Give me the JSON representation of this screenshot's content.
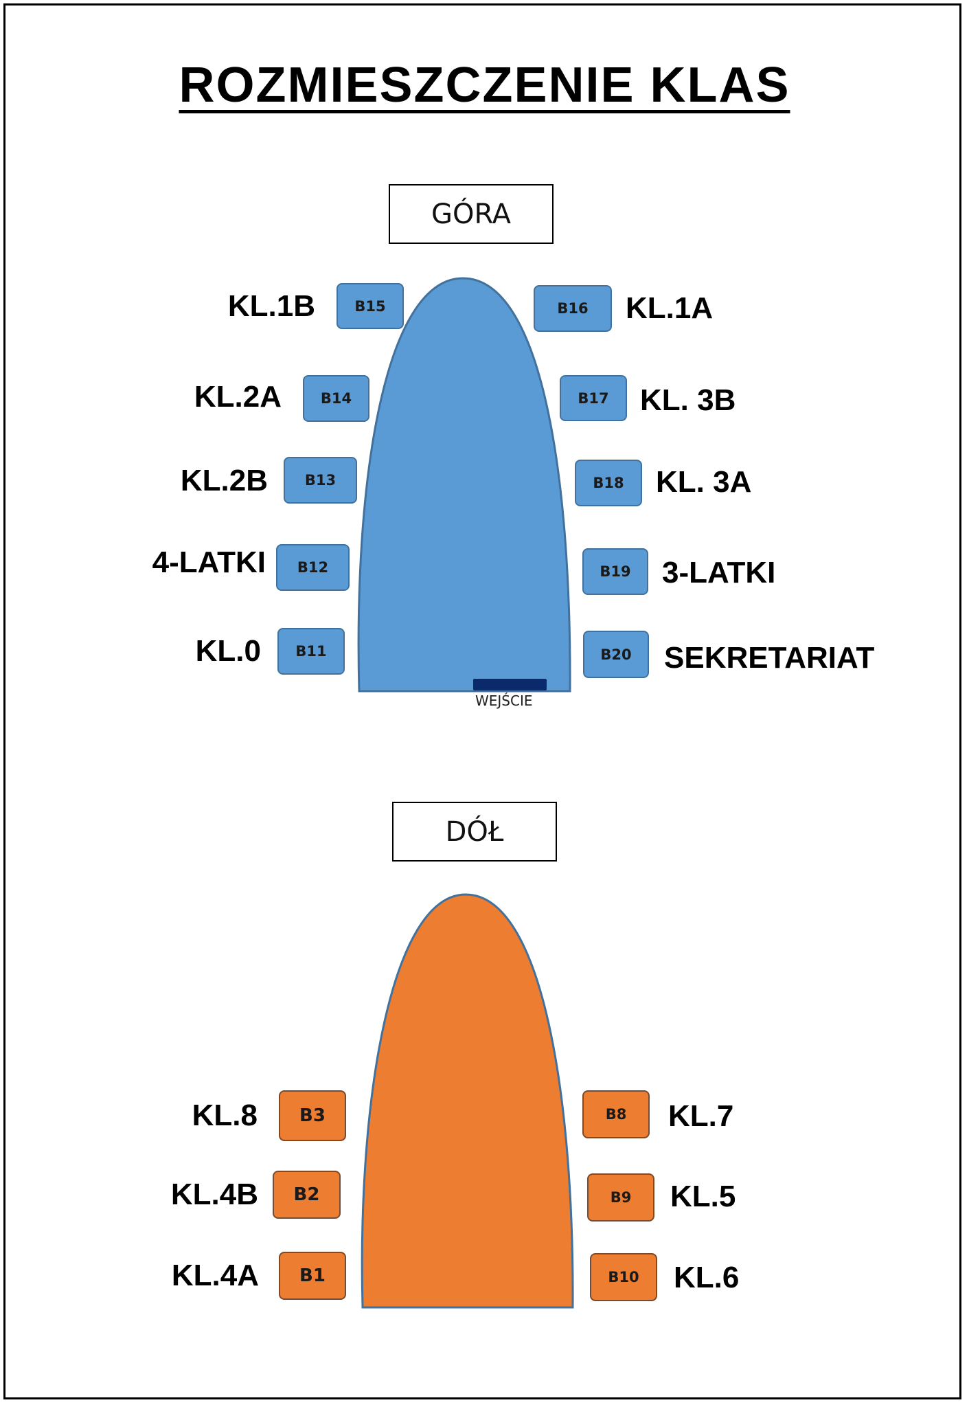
{
  "title": "ROZMIESZCZENIE KLAS",
  "colors": {
    "upper_fill": "#5b9bd5",
    "upper_stroke": "#41719c",
    "lower_fill": "#ed7d31",
    "lower_stroke": "#41719c",
    "entrance_fill": "#0b2a6b"
  },
  "upper": {
    "heading": "GÓRA",
    "entrance_label": "WEJŚCIE",
    "rooms": [
      {
        "room": "B15",
        "label": "KL.1B"
      },
      {
        "room": "B14",
        "label": "KL.2A"
      },
      {
        "room": "B13",
        "label": "KL.2B"
      },
      {
        "room": "B12",
        "label": "4-LATKI"
      },
      {
        "room": "B11",
        "label": "KL.0"
      },
      {
        "room": "B16",
        "label": "KL.1A"
      },
      {
        "room": "B17",
        "label": "KL. 3B"
      },
      {
        "room": "B18",
        "label": "KL. 3A"
      },
      {
        "room": "B19",
        "label": "3-LATKI"
      },
      {
        "room": "B20",
        "label": "SEKRETARIAT"
      }
    ]
  },
  "lower": {
    "heading": "DÓŁ",
    "rooms": [
      {
        "room": "B3",
        "label": "KL.8"
      },
      {
        "room": "B2",
        "label": "KL.4B"
      },
      {
        "room": "B1",
        "label": "KL.4A"
      },
      {
        "room": "B8",
        "label": "KL.7"
      },
      {
        "room": "B9",
        "label": "KL.5"
      },
      {
        "room": "B10",
        "label": "KL.6"
      }
    ]
  }
}
